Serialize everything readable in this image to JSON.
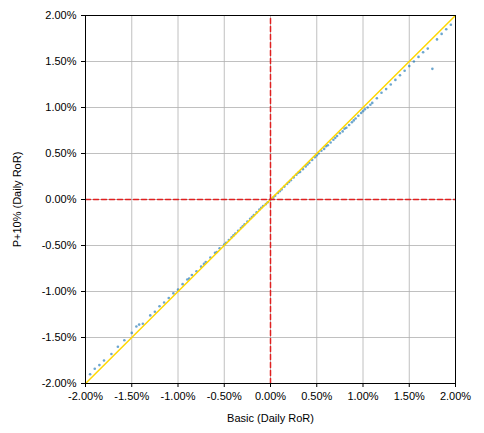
{
  "chart_data": {
    "type": "scatter",
    "x_label": "Basic (Daily RoR)",
    "y_label": "P+10% (Daily RoR)",
    "xlim": [
      -2,
      2
    ],
    "ylim": [
      -2,
      2
    ],
    "xticks": [
      {
        "value": -2,
        "label": "-2.00%"
      },
      {
        "value": -1.5,
        "label": "-1.50%"
      },
      {
        "value": -1,
        "label": "-1.00%"
      },
      {
        "value": -0.5,
        "label": "-0.50%"
      },
      {
        "value": 0,
        "label": "0.00%"
      },
      {
        "value": 0.5,
        "label": "0.50%"
      },
      {
        "value": 1,
        "label": "1.00%"
      },
      {
        "value": 1.5,
        "label": "1.50%"
      },
      {
        "value": 2,
        "label": "2.00%"
      }
    ],
    "yticks": [
      {
        "value": -2,
        "label": "-2.00%"
      },
      {
        "value": -1.5,
        "label": "-1.50%"
      },
      {
        "value": -1,
        "label": "-1.00%"
      },
      {
        "value": -0.5,
        "label": "-0.50%"
      },
      {
        "value": 0,
        "label": "0.00%"
      },
      {
        "value": 0.5,
        "label": "0.50%"
      },
      {
        "value": 1,
        "label": "1.00%"
      },
      {
        "value": 1.5,
        "label": "1.50%"
      },
      {
        "value": 2,
        "label": "2.00%"
      }
    ],
    "grid": true,
    "series": [
      {
        "type": "scatter",
        "marker": "circle",
        "color": "#1f77b4",
        "x": [
          -1.95,
          -1.9,
          -1.85,
          -1.8,
          -1.72,
          -1.65,
          -1.58,
          -1.5,
          -1.45,
          -1.42,
          -1.38,
          -1.3,
          -1.25,
          -1.2,
          -1.15,
          -1.1,
          -1.05,
          -1.0,
          -0.95,
          -0.9,
          -0.88,
          -0.85,
          -0.8,
          -0.75,
          -0.72,
          -0.7,
          -0.65,
          -0.6,
          -0.58,
          -0.55,
          -0.5,
          -0.48,
          -0.45,
          -0.42,
          -0.4,
          -0.38,
          -0.35,
          -0.32,
          -0.3,
          -0.28,
          -0.25,
          -0.22,
          -0.2,
          -0.18,
          -0.15,
          -0.12,
          -0.1,
          -0.08,
          -0.05,
          -0.03,
          0,
          0.03,
          0.05,
          0.08,
          0.1,
          0.12,
          0.15,
          0.18,
          0.2,
          0.22,
          0.25,
          0.28,
          0.3,
          0.32,
          0.35,
          0.38,
          0.4,
          0.42,
          0.45,
          0.48,
          0.5,
          0.52,
          0.55,
          0.58,
          0.6,
          0.62,
          0.65,
          0.68,
          0.7,
          0.72,
          0.75,
          0.78,
          0.8,
          0.82,
          0.85,
          0.88,
          0.9,
          0.92,
          0.95,
          0.98,
          1.0,
          1.02,
          1.05,
          1.08,
          1.1,
          1.15,
          1.2,
          1.25,
          1.3,
          1.35,
          1.4,
          1.45,
          1.5,
          1.55,
          1.6,
          1.65,
          1.7,
          1.75,
          1.8,
          1.85,
          1.9,
          1.95
        ],
        "values": [
          -1.9,
          -1.84,
          -1.8,
          -1.75,
          -1.68,
          -1.6,
          -1.53,
          -1.45,
          -1.38,
          -1.36,
          -1.35,
          -1.26,
          -1.22,
          -1.16,
          -1.12,
          -1.07,
          -1.02,
          -0.98,
          -0.92,
          -0.87,
          -0.86,
          -0.82,
          -0.78,
          -0.73,
          -0.7,
          -0.68,
          -0.63,
          -0.58,
          -0.57,
          -0.53,
          -0.49,
          -0.47,
          -0.44,
          -0.41,
          -0.39,
          -0.37,
          -0.34,
          -0.31,
          -0.29,
          -0.27,
          -0.24,
          -0.21,
          -0.19,
          -0.17,
          -0.14,
          -0.11,
          -0.09,
          -0.07,
          -0.05,
          -0.03,
          0,
          0.02,
          0.04,
          0.07,
          0.09,
          0.11,
          0.14,
          0.17,
          0.19,
          0.21,
          0.24,
          0.27,
          0.29,
          0.3,
          0.33,
          0.36,
          0.38,
          0.4,
          0.43,
          0.46,
          0.48,
          0.5,
          0.53,
          0.55,
          0.58,
          0.59,
          0.62,
          0.65,
          0.67,
          0.69,
          0.72,
          0.74,
          0.77,
          0.78,
          0.81,
          0.84,
          0.86,
          0.88,
          0.91,
          0.94,
          0.96,
          0.98,
          1.0,
          1.03,
          1.05,
          1.1,
          1.16,
          1.2,
          1.25,
          1.3,
          1.35,
          1.4,
          1.45,
          1.5,
          1.55,
          1.6,
          1.64,
          1.42,
          1.74,
          1.8,
          1.85,
          1.9
        ]
      },
      {
        "type": "line",
        "line_style": "solid",
        "color": "#ffd700",
        "x": [
          -2,
          2
        ],
        "values": [
          -2,
          2
        ]
      },
      {
        "type": "line",
        "line_style": "dashed",
        "color": "#e02020",
        "x": [
          0,
          0
        ],
        "values": [
          -2,
          2
        ]
      },
      {
        "type": "line",
        "line_style": "dashed",
        "color": "#e02020",
        "x": [
          -2,
          2
        ],
        "values": [
          0,
          0
        ]
      }
    ]
  }
}
